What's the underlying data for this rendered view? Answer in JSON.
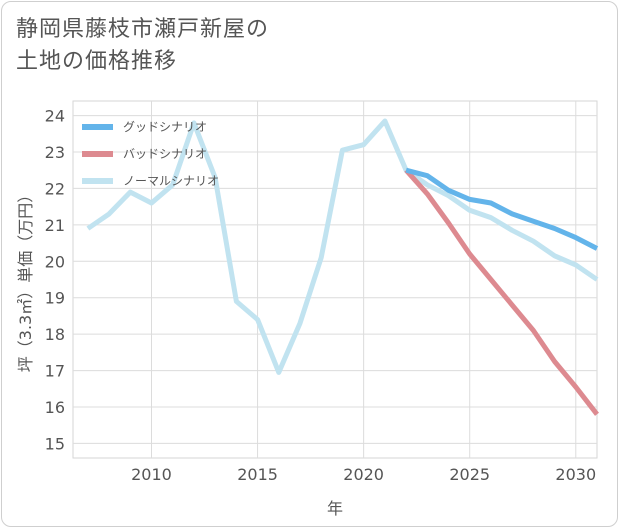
{
  "title": {
    "line1": "静岡県藤枝市瀬戸新屋の",
    "line2": "土地の価格推移"
  },
  "chart_data": {
    "type": "line",
    "xlabel": "年",
    "ylabel": "坪（3.3㎡）単価（万円）",
    "xlim": [
      2006.3,
      2031
    ],
    "ylim": [
      14.6,
      24.4
    ],
    "x_ticks": [
      2010,
      2015,
      2020,
      2025,
      2030
    ],
    "y_ticks": [
      15,
      16,
      17,
      18,
      19,
      20,
      21,
      22,
      23,
      24
    ],
    "grid": true,
    "legend_position": "top-left",
    "series": [
      {
        "name": "ノーマルシナリオ",
        "color": "#c1e3f0",
        "x": [
          2007,
          2008,
          2009,
          2010,
          2011,
          2012,
          2013,
          2014,
          2015,
          2016,
          2017,
          2018,
          2019,
          2020,
          2021,
          2022,
          2023,
          2024,
          2025,
          2026,
          2027,
          2028,
          2029,
          2030,
          2031
        ],
        "values": [
          20.9,
          21.3,
          21.9,
          21.6,
          22.1,
          23.8,
          22.3,
          18.9,
          18.4,
          16.95,
          18.3,
          20.1,
          23.05,
          23.2,
          23.85,
          22.5,
          22.1,
          21.8,
          21.4,
          21.2,
          20.85,
          20.55,
          20.15,
          19.9,
          19.5
        ]
      },
      {
        "name": "グッドシナリオ",
        "color": "#63b4ea",
        "x": [
          2022,
          2023,
          2024,
          2025,
          2026,
          2027,
          2028,
          2029,
          2030,
          2031
        ],
        "values": [
          22.5,
          22.35,
          21.95,
          21.7,
          21.6,
          21.3,
          21.1,
          20.9,
          20.65,
          20.35
        ]
      },
      {
        "name": "バッドシナリオ",
        "color": "#dd8a90",
        "x": [
          2022,
          2023,
          2024,
          2025,
          2026,
          2027,
          2028,
          2029,
          2030,
          2031
        ],
        "values": [
          22.5,
          21.85,
          21.05,
          20.2,
          19.5,
          18.8,
          18.1,
          17.25,
          16.55,
          15.8
        ]
      }
    ],
    "legend": [
      {
        "name": "グッドシナリオ",
        "color": "#63b4ea"
      },
      {
        "name": "バッドシナリオ",
        "color": "#dd8a90"
      },
      {
        "name": "ノーマルシナリオ",
        "color": "#c1e3f0"
      }
    ]
  }
}
